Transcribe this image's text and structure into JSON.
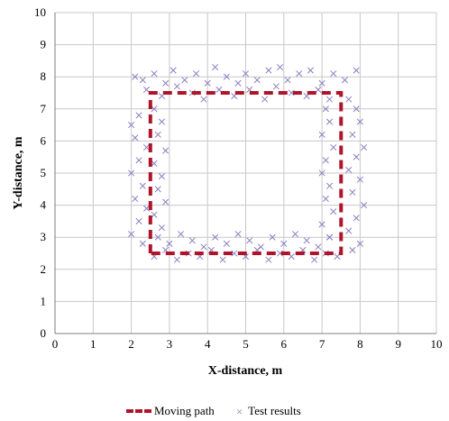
{
  "chart_data": {
    "type": "scatter",
    "xlabel": "X-distance, m",
    "ylabel": "Y-distance, m",
    "xlim": [
      0,
      10
    ],
    "ylim": [
      0,
      10
    ],
    "xticks": [
      "0",
      "1",
      "2",
      "3",
      "4",
      "5",
      "6",
      "7",
      "8",
      "9",
      "10"
    ],
    "yticks": [
      "0",
      "1",
      "2",
      "3",
      "4",
      "5",
      "6",
      "7",
      "8",
      "9",
      "10"
    ],
    "grid": true,
    "legend_position": "bottom",
    "series": [
      {
        "name": "Moving path",
        "kind": "dashed-line",
        "color": "#b0142a",
        "points": [
          [
            2.5,
            2.5
          ],
          [
            2.5,
            7.5
          ],
          [
            7.5,
            7.5
          ],
          [
            7.5,
            2.5
          ],
          [
            2.5,
            2.5
          ]
        ]
      },
      {
        "name": "Test results",
        "kind": "x-marker",
        "color": "#8a7fbf",
        "points": [
          [
            2.1,
            8.0
          ],
          [
            2.3,
            7.9
          ],
          [
            2.6,
            8.1
          ],
          [
            2.9,
            7.8
          ],
          [
            3.1,
            8.2
          ],
          [
            3.4,
            7.9
          ],
          [
            3.7,
            8.1
          ],
          [
            4.0,
            7.8
          ],
          [
            4.2,
            8.3
          ],
          [
            4.5,
            8.0
          ],
          [
            4.8,
            7.8
          ],
          [
            5.0,
            8.1
          ],
          [
            5.3,
            7.9
          ],
          [
            5.6,
            8.2
          ],
          [
            5.9,
            8.3
          ],
          [
            6.1,
            7.9
          ],
          [
            6.4,
            8.1
          ],
          [
            6.7,
            8.2
          ],
          [
            7.0,
            7.8
          ],
          [
            7.3,
            8.1
          ],
          [
            7.6,
            7.9
          ],
          [
            7.9,
            8.2
          ],
          [
            2.4,
            7.6
          ],
          [
            2.8,
            7.4
          ],
          [
            3.2,
            7.7
          ],
          [
            3.6,
            7.5
          ],
          [
            3.9,
            7.3
          ],
          [
            4.3,
            7.6
          ],
          [
            4.7,
            7.4
          ],
          [
            5.1,
            7.6
          ],
          [
            5.5,
            7.3
          ],
          [
            5.8,
            7.7
          ],
          [
            6.2,
            7.5
          ],
          [
            6.6,
            7.4
          ],
          [
            6.9,
            7.6
          ],
          [
            7.2,
            7.3
          ],
          [
            2.0,
            6.5
          ],
          [
            2.2,
            6.8
          ],
          [
            2.1,
            6.1
          ],
          [
            2.4,
            5.8
          ],
          [
            2.2,
            5.4
          ],
          [
            2.0,
            5.0
          ],
          [
            2.3,
            4.6
          ],
          [
            2.1,
            4.2
          ],
          [
            2.4,
            3.9
          ],
          [
            2.2,
            3.5
          ],
          [
            2.0,
            3.1
          ],
          [
            2.3,
            2.8
          ],
          [
            2.6,
            7.0
          ],
          [
            2.8,
            6.6
          ],
          [
            2.7,
            6.2
          ],
          [
            2.9,
            5.7
          ],
          [
            2.6,
            5.3
          ],
          [
            2.8,
            4.9
          ],
          [
            2.7,
            4.5
          ],
          [
            2.9,
            4.1
          ],
          [
            2.6,
            3.7
          ],
          [
            2.8,
            3.3
          ],
          [
            7.1,
            7.0
          ],
          [
            7.2,
            6.6
          ],
          [
            7.0,
            6.2
          ],
          [
            7.3,
            5.8
          ],
          [
            7.1,
            5.4
          ],
          [
            7.0,
            5.0
          ],
          [
            7.2,
            4.6
          ],
          [
            7.1,
            4.2
          ],
          [
            7.3,
            3.8
          ],
          [
            7.0,
            3.4
          ],
          [
            7.2,
            3.0
          ],
          [
            7.7,
            7.3
          ],
          [
            7.9,
            7.0
          ],
          [
            8.0,
            6.6
          ],
          [
            7.8,
            6.2
          ],
          [
            8.1,
            5.8
          ],
          [
            7.9,
            5.5
          ],
          [
            7.7,
            5.1
          ],
          [
            8.0,
            4.8
          ],
          [
            7.8,
            4.4
          ],
          [
            8.1,
            4.0
          ],
          [
            7.9,
            3.6
          ],
          [
            7.7,
            3.2
          ],
          [
            8.0,
            2.8
          ],
          [
            7.8,
            2.6
          ],
          [
            2.7,
            3.0
          ],
          [
            3.0,
            2.8
          ],
          [
            3.3,
            3.1
          ],
          [
            3.6,
            2.9
          ],
          [
            3.9,
            2.7
          ],
          [
            4.2,
            3.0
          ],
          [
            4.5,
            2.8
          ],
          [
            4.8,
            3.1
          ],
          [
            5.1,
            2.9
          ],
          [
            5.4,
            2.7
          ],
          [
            5.7,
            3.0
          ],
          [
            6.0,
            2.8
          ],
          [
            6.3,
            3.1
          ],
          [
            6.6,
            2.9
          ],
          [
            6.9,
            2.7
          ],
          [
            7.2,
            3.0
          ],
          [
            2.6,
            2.4
          ],
          [
            2.9,
            2.6
          ],
          [
            3.2,
            2.3
          ],
          [
            3.5,
            2.5
          ],
          [
            3.8,
            2.4
          ],
          [
            4.1,
            2.6
          ],
          [
            4.4,
            2.3
          ],
          [
            4.7,
            2.5
          ],
          [
            5.0,
            2.4
          ],
          [
            5.3,
            2.6
          ],
          [
            5.6,
            2.3
          ],
          [
            5.9,
            2.5
          ],
          [
            6.2,
            2.4
          ],
          [
            6.5,
            2.6
          ],
          [
            6.8,
            2.3
          ],
          [
            7.1,
            2.5
          ],
          [
            7.4,
            2.4
          ]
        ]
      }
    ]
  }
}
